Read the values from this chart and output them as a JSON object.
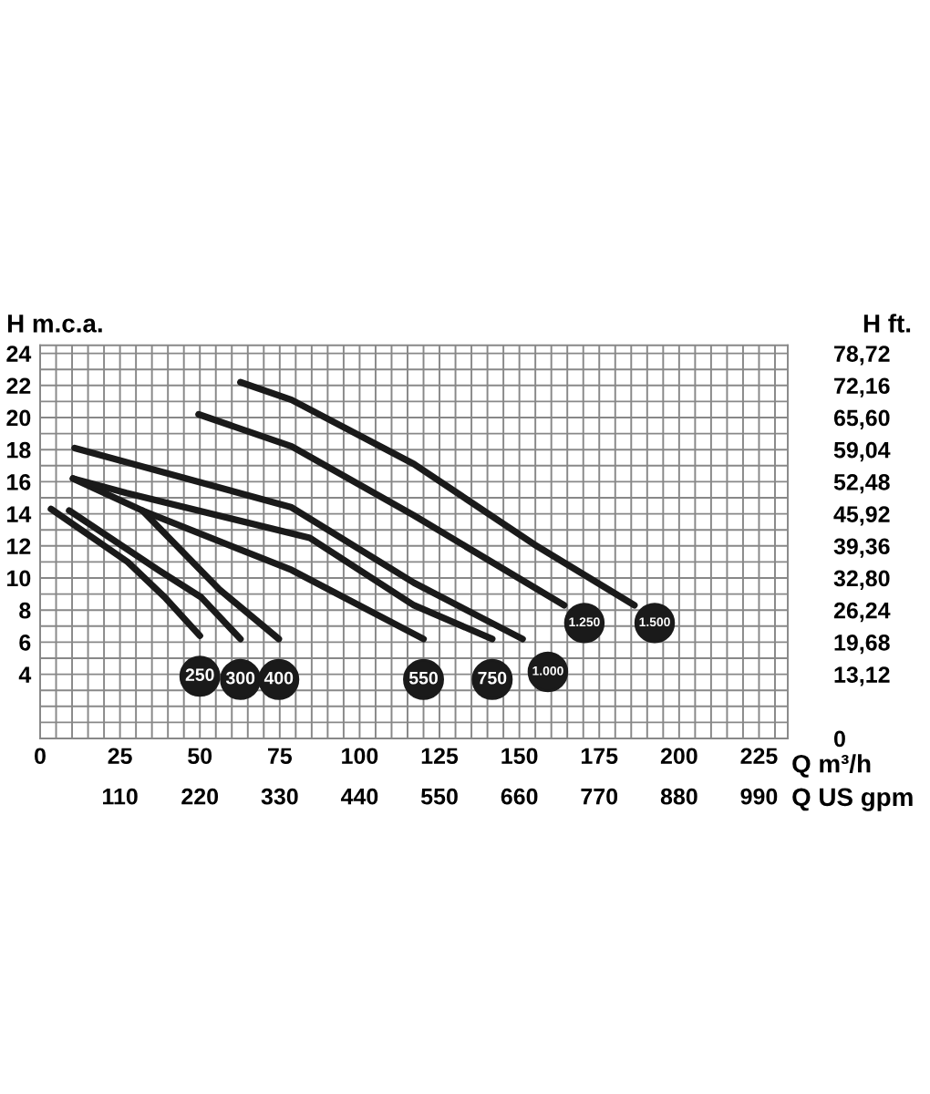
{
  "chart_data": {
    "type": "line",
    "xlabel": "Q m³/h",
    "x2label": "Q US gpm",
    "ylabel": "H m.c.a.",
    "y2label": "H ft.",
    "xlim": [
      0,
      234
    ],
    "ylim": [
      0,
      24.5
    ],
    "x2lim": [
      0,
      1029.6
    ],
    "y2lim": [
      0,
      80.36
    ],
    "xticks": [
      0,
      {
        "value": 5,
        "label": null
      },
      {
        "value": 10,
        "label": null
      },
      {
        "value": 15,
        "label": null
      },
      {
        "value": 20,
        "label": null
      },
      25,
      {
        "value": 30,
        "label": null
      },
      {
        "value": 35,
        "label": null
      },
      {
        "value": 40,
        "label": null
      },
      {
        "value": 45,
        "label": null
      },
      50,
      {
        "value": 55,
        "label": null
      },
      {
        "value": 60,
        "label": null
      },
      {
        "value": 65,
        "label": null
      },
      {
        "value": 70,
        "label": null
      },
      75,
      {
        "value": 80,
        "label": null
      },
      {
        "value": 85,
        "label": null
      },
      {
        "value": 90,
        "label": null
      },
      {
        "value": 95,
        "label": null
      },
      100,
      {
        "value": 105,
        "label": null
      },
      {
        "value": 110,
        "label": null
      },
      {
        "value": 115,
        "label": null
      },
      {
        "value": 120,
        "label": null
      },
      125,
      {
        "value": 130,
        "label": null
      },
      {
        "value": 135,
        "label": null
      },
      {
        "value": 140,
        "label": null
      },
      {
        "value": 145,
        "label": null
      },
      150,
      {
        "value": 155,
        "label": null
      },
      {
        "value": 160,
        "label": null
      },
      {
        "value": 165,
        "label": null
      },
      {
        "value": 170,
        "label": null
      },
      175,
      {
        "value": 180,
        "label": null
      },
      {
        "value": 185,
        "label": null
      },
      {
        "value": 190,
        "label": null
      },
      {
        "value": 195,
        "label": null
      },
      200,
      {
        "value": 205,
        "label": null
      },
      {
        "value": 210,
        "label": null
      },
      {
        "value": 215,
        "label": null
      },
      {
        "value": 220,
        "label": null
      },
      225,
      {
        "value": 230,
        "label": null
      }
    ],
    "yticks": [
      {
        "value": 1,
        "label": null
      },
      {
        "value": 2,
        "label": null
      },
      {
        "value": 3,
        "label": null
      },
      4,
      {
        "value": 5,
        "label": null
      },
      6,
      {
        "value": 7,
        "label": null
      },
      8,
      {
        "value": 9,
        "label": null
      },
      10,
      {
        "value": 11,
        "label": null
      },
      12,
      {
        "value": 13,
        "label": null
      },
      14,
      {
        "value": 15,
        "label": null
      },
      16,
      {
        "value": 17,
        "label": null
      },
      18,
      {
        "value": 19,
        "label": null
      },
      20,
      {
        "value": 21,
        "label": null
      },
      22,
      {
        "value": 23,
        "label": null
      },
      24
    ],
    "x2ticks": [
      110,
      220,
      330,
      440,
      550,
      660,
      770,
      880,
      990
    ],
    "y2ticks": [
      0,
      {
        "value": 13.12,
        "label": "13,12"
      },
      {
        "value": 19.68,
        "label": "19,68"
      },
      {
        "value": 26.24,
        "label": "26,24"
      },
      {
        "value": 32.8,
        "label": "32,80"
      },
      {
        "value": 39.36,
        "label": "39,36"
      },
      {
        "value": 45.92,
        "label": "45,92"
      },
      {
        "value": 52.48,
        "label": "52,48"
      },
      {
        "value": 59.04,
        "label": "59,04"
      },
      {
        "value": 65.6,
        "label": "65,60"
      },
      {
        "value": 72.16,
        "label": "72,16"
      },
      {
        "value": 78.72,
        "label": "78,72"
      }
    ],
    "grid": true,
    "legend": "bottom",
    "marker": "none",
    "line_style": "solid",
    "series": [
      {
        "name": "250",
        "color": "#1a1a1a",
        "x": [
          3.4,
          27.4,
          39,
          50
        ],
        "values": [
          14.3,
          11,
          8.8,
          6.4
        ]
      },
      {
        "name": "300",
        "color": "#1a1a1a",
        "x": [
          9.1,
          37,
          50.4,
          62.7
        ],
        "values": [
          14.2,
          10.5,
          8.8,
          6.2
        ]
      },
      {
        "name": "400",
        "color": "#1a1a1a",
        "x": [
          10.3,
          32,
          56,
          74.7
        ],
        "values": [
          16.2,
          14.2,
          9.3,
          6.2
        ]
      },
      {
        "name": "550",
        "color": "#1a1a1a",
        "x": [
          32,
          78.7,
          120
        ],
        "values": [
          14.2,
          10.5,
          6.2
        ]
      },
      {
        "name": "750",
        "color": "#1a1a1a",
        "x": [
          10.3,
          27,
          84.4,
          117,
          141.5
        ],
        "values": [
          16.2,
          15.3,
          12.5,
          8.3,
          6.2
        ]
      },
      {
        "name": "1.000",
        "color": "#1a1a1a",
        "x": [
          10.8,
          78.7,
          117,
          151
        ],
        "values": [
          18.1,
          14.4,
          9.7,
          6.2
        ]
      },
      {
        "name": "1.250",
        "color": "#1a1a1a",
        "x": [
          49.6,
          78.7,
          117,
          164
        ],
        "values": [
          20.2,
          18.2,
          13.9,
          8.3
        ]
      },
      {
        "name": "1.500",
        "color": "#1a1a1a",
        "x": [
          62.7,
          78.7,
          117,
          154.6,
          186
        ],
        "values": [
          22.2,
          21.1,
          17.1,
          12.1,
          8.3
        ]
      }
    ]
  }
}
